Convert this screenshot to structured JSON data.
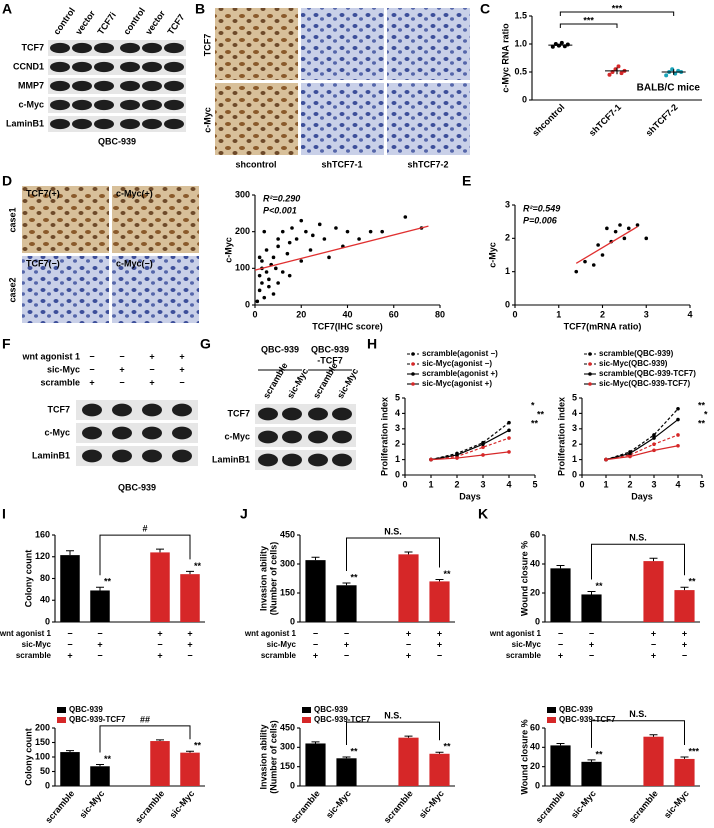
{
  "panel_letters": [
    "A",
    "B",
    "C",
    "D",
    "E",
    "F",
    "G",
    "H",
    "I",
    "J",
    "K"
  ],
  "blot_a": {
    "lanes": [
      "control",
      "vector",
      "TCF7i",
      "control",
      "vector",
      "TCF7"
    ],
    "rows": [
      "TCF7",
      "CCND1",
      "MMP7",
      "c-Myc",
      "LaminB1"
    ],
    "caption": "QBC-939"
  },
  "ihc_b": {
    "rows": [
      "TCF7",
      "c-Myc"
    ],
    "columns": [
      "shcontrol",
      "shTCF7-1",
      "shTCF7-2"
    ]
  },
  "ihc_d": {
    "rows": [
      "case1",
      "case2"
    ],
    "labels": [
      "TCF7(+)",
      "c-Myc(+)",
      "TCF7(−)",
      "c-Myc(−)"
    ]
  },
  "blot_f": {
    "conditions": [
      {
        "name": "wnt agonist 1",
        "marks": [
          "−",
          "−",
          "+",
          "+"
        ]
      },
      {
        "name": "sic-Myc",
        "marks": [
          "−",
          "+",
          "−",
          "+"
        ]
      },
      {
        "name": "scramble",
        "marks": [
          "+",
          "−",
          "+",
          "−"
        ]
      }
    ],
    "rows": [
      "TCF7",
      "c-Myc",
      "LaminB1"
    ],
    "caption": "QBC-939"
  },
  "blot_g": {
    "groups": [
      {
        "lines": [
          "QBC-939"
        ]
      },
      {
        "lines": [
          "QBC-939",
          "-TCF7"
        ]
      }
    ],
    "lanes": [
      "scramble",
      "sic-Myc",
      "scramble",
      "sic-Myc"
    ],
    "rows": [
      "TCF7",
      "c-Myc",
      "LaminB1"
    ]
  },
  "chart_data": [
    {
      "type": "dot",
      "y_label": "c-Myc RNA ratio",
      "categories": [
        "shcontrol",
        "shTCF7-1",
        "shTCF7-2"
      ],
      "values": [
        0.98,
        0.52,
        0.5
      ],
      "errors": [
        0.03,
        0.06,
        0.05
      ],
      "points": [
        [
          0.95,
          1.0,
          0.97,
          1.02,
          0.96,
          0.99
        ],
        [
          0.45,
          0.5,
          0.55,
          0.6,
          0.48,
          0.52
        ],
        [
          0.44,
          0.5,
          0.55,
          0.47,
          0.52,
          0.5
        ]
      ],
      "colors": [
        "#000000",
        "#d62728",
        "#1aa3b8"
      ],
      "ylim": [
        0,
        1.5
      ],
      "yticks": [
        0,
        0.5,
        {
          "value": 1,
          "label": "1.0"
        },
        1.5
      ],
      "significance": [
        "***",
        "***"
      ],
      "annotations": [
        "BALB/C mice"
      ]
    },
    {
      "type": "scatter",
      "x_label": "TCF7(IHC score)",
      "y_label": "c-Myc",
      "x": [
        1,
        2,
        2,
        3,
        3,
        4,
        5,
        5,
        6,
        7,
        8,
        8,
        9,
        10,
        10,
        12,
        12,
        14,
        15,
        16,
        18,
        20,
        20,
        22,
        24,
        25,
        28,
        30,
        32,
        35,
        38,
        40,
        45,
        50,
        55,
        65,
        72,
        3,
        6,
        10,
        15,
        2,
        4
      ],
      "values": [
        10,
        40,
        80,
        60,
        120,
        20,
        90,
        150,
        70,
        110,
        30,
        130,
        100,
        160,
        60,
        200,
        90,
        140,
        170,
        210,
        180,
        120,
        230,
        200,
        150,
        190,
        220,
        180,
        130,
        210,
        160,
        200,
        180,
        200,
        200,
        240,
        210,
        100,
        50,
        180,
        80,
        130,
        200
      ],
      "color": "#000000",
      "fit": {
        "x": [
          0,
          75
        ],
        "y": [
          95,
          215
        ]
      },
      "fit_color": "#e03030",
      "xlim": [
        0,
        80
      ],
      "ylim": [
        0,
        300
      ],
      "xticks": [
        0,
        20,
        40,
        60,
        80
      ],
      "yticks": [
        0,
        100,
        200,
        300
      ],
      "annotations": [
        "R²=0.290",
        "P<0.001"
      ]
    },
    {
      "type": "scatter",
      "x_label": "TCF7(mRNA ratio)",
      "y_label": "c-Myc",
      "x": [
        1.4,
        1.6,
        1.8,
        1.9,
        2.0,
        2.1,
        2.2,
        2.3,
        2.4,
        2.5,
        2.6,
        2.8,
        3.0
      ],
      "values": [
        1.0,
        1.3,
        1.2,
        1.8,
        1.5,
        2.3,
        1.9,
        2.2,
        2.4,
        2.0,
        2.3,
        2.4,
        2.0
      ],
      "color": "#000000",
      "fit": {
        "x": [
          1.4,
          2.8
        ],
        "y": [
          1.25,
          2.35
        ]
      },
      "fit_color": "#e03030",
      "xlim": [
        0,
        4
      ],
      "ylim": [
        0,
        3
      ],
      "xticks": [
        0,
        1,
        2,
        3,
        4
      ],
      "yticks": [
        0,
        1,
        2,
        3
      ],
      "annotations": [
        "R²=0.549",
        "P=0.006"
      ]
    },
    {
      "type": "line",
      "x_label": "Days",
      "y_label": "Proliferation index",
      "x": [
        1,
        2,
        3,
        4
      ],
      "xlim": [
        0,
        5
      ],
      "ylim": [
        0,
        5
      ],
      "xticks": [
        0,
        1,
        2,
        3,
        4,
        5
      ],
      "yticks": [
        0,
        1,
        2,
        3,
        4,
        5
      ],
      "series": [
        {
          "name": "scramble(agonist −)",
          "color": "#000000",
          "dashed": true,
          "values": [
            1,
            1.4,
            2.1,
            3.4
          ]
        },
        {
          "name": "sic-Myc(agonist −)",
          "color": "#d62728",
          "dashed": true,
          "values": [
            1,
            1.2,
            1.8,
            2.4
          ]
        },
        {
          "name": "scramble(agonist +)",
          "color": "#000000",
          "dashed": false,
          "values": [
            1,
            1.3,
            2.0,
            2.9
          ]
        },
        {
          "name": "sic-Myc(agonist +)",
          "color": "#d62728",
          "dashed": false,
          "values": [
            1,
            1.1,
            1.3,
            1.5
          ]
        }
      ],
      "annotations": [
        "*",
        "**",
        "**"
      ]
    },
    {
      "type": "line",
      "x_label": "Days",
      "y_label": "Proliferation index",
      "x": [
        1,
        2,
        3,
        4
      ],
      "xlim": [
        0,
        5
      ],
      "ylim": [
        0,
        5
      ],
      "xticks": [
        0,
        1,
        2,
        3,
        4,
        5
      ],
      "yticks": [
        0,
        1,
        2,
        3,
        4,
        5
      ],
      "series": [
        {
          "name": "scramble(QBC-939)",
          "color": "#000000",
          "dashed": true,
          "values": [
            1,
            1.5,
            2.6,
            4.3
          ]
        },
        {
          "name": "sic-Myc(QBC-939)",
          "color": "#d62728",
          "dashed": true,
          "values": [
            1,
            1.3,
            2.0,
            2.6
          ]
        },
        {
          "name": "scramble(QBC-939-TCF7)",
          "color": "#000000",
          "dashed": false,
          "values": [
            1,
            1.4,
            2.4,
            3.6
          ]
        },
        {
          "name": "sic-Myc(QBC-939-TCF7)",
          "color": "#d62728",
          "dashed": false,
          "values": [
            1,
            1.2,
            1.6,
            1.9
          ]
        }
      ],
      "annotations": [
        "**",
        "*",
        "**"
      ]
    },
    {
      "type": "bar",
      "y_label": "Colony count",
      "values": [
        123,
        58,
        128,
        88
      ],
      "errors": [
        8,
        6,
        6,
        5
      ],
      "colors": [
        "#000000",
        "#000000",
        "#d62728",
        "#d62728"
      ],
      "ylim": [
        0,
        160
      ],
      "yticks": [
        0,
        40,
        80,
        120,
        160
      ],
      "stars": [
        null,
        "**",
        null,
        "**"
      ],
      "bracket": "#",
      "conditions": [
        {
          "name": "wnt agonist 1",
          "marks": [
            "−",
            "−",
            "+",
            "+"
          ]
        },
        {
          "name": "sic-Myc",
          "marks": [
            "−",
            "+",
            "−",
            "+"
          ]
        },
        {
          "name": "scramble",
          "marks": [
            "+",
            "−",
            "+",
            "−"
          ]
        }
      ]
    },
    {
      "type": "bar",
      "y_label": "Colony count",
      "categories": [
        "scramble",
        "sic-Myc",
        "scramble",
        "sic-Myc"
      ],
      "values": [
        117,
        68,
        155,
        115
      ],
      "errors": [
        5,
        6,
        4,
        5
      ],
      "colors": [
        "#000000",
        "#000000",
        "#d62728",
        "#d62728"
      ],
      "ylim": [
        0,
        200
      ],
      "yticks": [
        0,
        50,
        100,
        150,
        200
      ],
      "stars": [
        null,
        "**",
        null,
        "**"
      ],
      "bracket": "##",
      "legend": [
        {
          "name": "QBC-939",
          "color": "#000000"
        },
        {
          "name": "QBC-939-TCF7",
          "color": "#d62728"
        }
      ]
    },
    {
      "type": "bar",
      "y_label": [
        "Invasion ability",
        "(Number of cells)"
      ],
      "values": [
        320,
        190,
        350,
        210
      ],
      "errors": [
        15,
        12,
        12,
        10
      ],
      "colors": [
        "#000000",
        "#000000",
        "#d62728",
        "#d62728"
      ],
      "ylim": [
        0,
        450
      ],
      "yticks": [
        0,
        150,
        300,
        450
      ],
      "stars": [
        null,
        "**",
        null,
        "**"
      ],
      "bracket": "N.S.",
      "conditions": [
        {
          "name": "wnt agonist 1",
          "marks": [
            "−",
            "−",
            "+",
            "+"
          ]
        },
        {
          "name": "sic-Myc",
          "marks": [
            "−",
            "+",
            "−",
            "+"
          ]
        },
        {
          "name": "scramble",
          "marks": [
            "+",
            "−",
            "+",
            "−"
          ]
        }
      ]
    },
    {
      "type": "bar",
      "y_label": [
        "Invasion ability",
        "(Number of cells)"
      ],
      "categories": [
        "scramble",
        "sic-Myc",
        "scramble",
        "sic-Myc"
      ],
      "values": [
        330,
        215,
        375,
        250
      ],
      "errors": [
        12,
        10,
        12,
        12
      ],
      "colors": [
        "#000000",
        "#000000",
        "#d62728",
        "#d62728"
      ],
      "ylim": [
        0,
        450
      ],
      "yticks": [
        0,
        150,
        300,
        450
      ],
      "stars": [
        null,
        "**",
        null,
        "**"
      ],
      "bracket": "N.S.",
      "legend": [
        {
          "name": "QBC-939",
          "color": "#000000"
        },
        {
          "name": "QBC-939-TCF7",
          "color": "#d62728"
        }
      ]
    },
    {
      "type": "bar",
      "y_label": "Wound closure %",
      "values": [
        37,
        19,
        42,
        22
      ],
      "errors": [
        2,
        2,
        2,
        2
      ],
      "colors": [
        "#000000",
        "#000000",
        "#d62728",
        "#d62728"
      ],
      "ylim": [
        0,
        60
      ],
      "yticks": [
        0,
        20,
        40,
        60
      ],
      "stars": [
        null,
        "**",
        null,
        "**"
      ],
      "bracket": "N.S.",
      "conditions": [
        {
          "name": "wnt agonist 1",
          "marks": [
            "−",
            "−",
            "+",
            "+"
          ]
        },
        {
          "name": "sic-Myc",
          "marks": [
            "−",
            "+",
            "−",
            "+"
          ]
        },
        {
          "name": "scramble",
          "marks": [
            "+",
            "−",
            "+",
            "−"
          ]
        }
      ]
    },
    {
      "type": "bar",
      "y_label": "Wound closure %",
      "categories": [
        "scramble",
        "sic-Myc",
        "scramble",
        "sic-Myc"
      ],
      "values": [
        42,
        25,
        51,
        28
      ],
      "errors": [
        2,
        2,
        2,
        2
      ],
      "colors": [
        "#000000",
        "#000000",
        "#d62728",
        "#d62728"
      ],
      "ylim": [
        0,
        60
      ],
      "yticks": [
        0,
        20,
        40,
        60
      ],
      "stars": [
        null,
        "**",
        null,
        "***"
      ],
      "bracket": "N.S.",
      "legend": [
        {
          "name": "QBC-939",
          "color": "#000000"
        },
        {
          "name": "QBC-939-TCF7",
          "color": "#d62728"
        }
      ]
    }
  ]
}
